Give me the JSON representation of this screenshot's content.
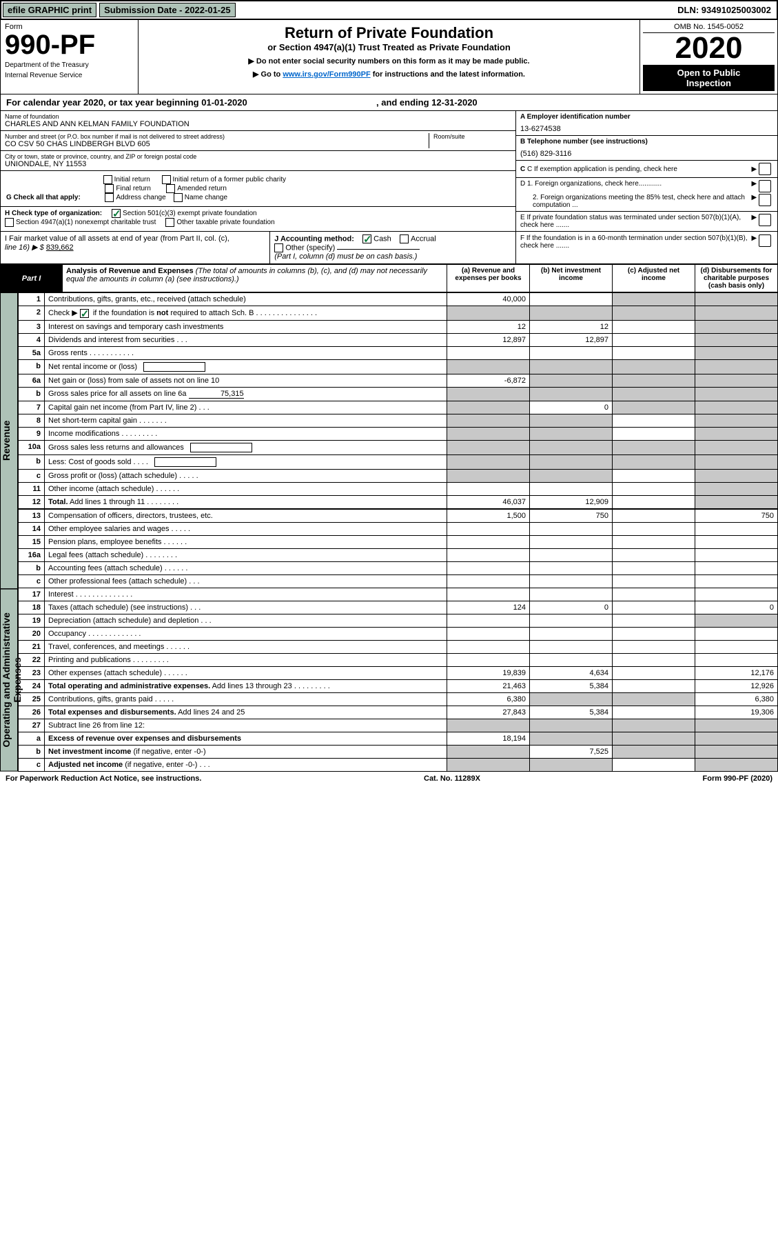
{
  "topbar": {
    "efile": "efile GRAPHIC print",
    "subdate_label": "Submission Date - 2022-01-25",
    "dln": "DLN: 93491025003002"
  },
  "header": {
    "form_word": "Form",
    "form_num": "990-PF",
    "dept": "Department of the Treasury",
    "irs": "Internal Revenue Service",
    "title": "Return of Private Foundation",
    "subtitle": "or Section 4947(a)(1) Trust Treated as Private Foundation",
    "note_line1": "▶ Do not enter social security numbers on this form as it may be made public.",
    "note_line2_pre": "▶ Go to ",
    "note_link": "www.irs.gov/Form990PF",
    "note_line2_post": " for instructions and the latest information.",
    "omb": "OMB No. 1545-0052",
    "year": "2020",
    "open1": "Open to Public",
    "open2": "Inspection"
  },
  "calyear": {
    "text_pre": "For calendar year 2020, or tax year beginning ",
    "begin": "01-01-2020",
    "mid": " , and ending ",
    "end": "12-31-2020"
  },
  "identity": {
    "name_label": "Name of foundation",
    "name": "CHARLES AND ANN KELMAN FAMILY FOUNDATION",
    "addr_label": "Number and street (or P.O. box number if mail is not delivered to street address)",
    "addr": "CO CSV 50 CHAS LINDBERGH BLVD 605",
    "room_label": "Room/suite",
    "city_label": "City or town, state or province, country, and ZIP or foreign postal code",
    "city": "UNIONDALE, NY  11553",
    "ein_label": "A Employer identification number",
    "ein": "13-6274538",
    "phone_label": "B Telephone number (see instructions)",
    "phone": "(516) 829-3116",
    "c_label": "C If exemption application is pending, check here",
    "d1": "D 1. Foreign organizations, check here............",
    "d2": "2. Foreign organizations meeting the 85% test, check here and attach computation ...",
    "e": "E  If private foundation status was terminated under section 507(b)(1)(A), check here .......",
    "f": "F  If the foundation is in a 60-month termination under section 507(b)(1)(B), check here .......",
    "g_label": "G Check all that apply:",
    "g_opts": [
      "Initial return",
      "Initial return of a former public charity",
      "Final return",
      "Amended return",
      "Address change",
      "Name change"
    ],
    "h_label": "H Check type of organization:",
    "h_opt1": "Section 501(c)(3) exempt private foundation",
    "h_opt2": "Section 4947(a)(1) nonexempt charitable trust",
    "h_opt3": "Other taxable private foundation",
    "i_label": "I Fair market value of all assets at end of year (from Part II, col. (c),",
    "i_line": "line 16) ▶ $",
    "i_val": "839,662",
    "j_label": "J Accounting method:",
    "j_cash": "Cash",
    "j_accrual": "Accrual",
    "j_other": "Other (specify)",
    "j_note": "(Part I, column (d) must be on cash basis.)"
  },
  "part1": {
    "tab": "Part I",
    "title": "Analysis of Revenue and Expenses",
    "note": " (The total of amounts in columns (b), (c), and (d) may not necessarily equal the amounts in column (a) (see instructions).)",
    "col_a": "(a)   Revenue and expenses per books",
    "col_b": "(b)   Net investment income",
    "col_c": "(c)   Adjusted net income",
    "col_d": "(d)   Disbursements for charitable purposes (cash basis only)"
  },
  "side_labels": {
    "revenue": "Revenue",
    "expenses": "Operating and Administrative Expenses"
  },
  "rows": [
    {
      "n": "1",
      "desc": "Contributions, gifts, grants, etc., received (attach schedule)",
      "a": "40,000",
      "b": "",
      "c": "grey",
      "d": "grey"
    },
    {
      "n": "2",
      "desc": "Check ▶ ☑ if the foundation is <b>not</b> required to attach Sch. B   .   .   .   .   .   .   .   .   .   .   .   .   .   .   .",
      "a": "grey",
      "b": "grey",
      "c": "grey",
      "d": "grey",
      "checked": true
    },
    {
      "n": "3",
      "desc": "Interest on savings and temporary cash investments",
      "a": "12",
      "b": "12",
      "c": "",
      "d": "grey"
    },
    {
      "n": "4",
      "desc": "Dividends and interest from securities   .   .   .",
      "a": "12,897",
      "b": "12,897",
      "c": "",
      "d": "grey"
    },
    {
      "n": "5a",
      "desc": "Gross rents   .   .   .   .   .   .   .   .   .   .   .",
      "a": "",
      "b": "",
      "c": "",
      "d": "grey"
    },
    {
      "n": "b",
      "desc": "Net rental income or (loss)  ",
      "a": "grey",
      "b": "grey",
      "c": "grey",
      "d": "grey",
      "inline_blank": true
    },
    {
      "n": "6a",
      "desc": "Net gain or (loss) from sale of assets not on line 10",
      "a": "-6,872",
      "b": "grey",
      "c": "grey",
      "d": "grey"
    },
    {
      "n": "b",
      "desc": "Gross sales price for all assets on line 6a",
      "a": "grey",
      "b": "grey",
      "c": "grey",
      "d": "grey",
      "inline_val": "75,315"
    },
    {
      "n": "7",
      "desc": "Capital gain net income (from Part IV, line 2)   .   .   .",
      "a": "grey",
      "b": "0",
      "c": "grey",
      "d": "grey"
    },
    {
      "n": "8",
      "desc": "Net short-term capital gain   .   .   .   .   .   .   .",
      "a": "grey",
      "b": "grey",
      "c": "",
      "d": "grey"
    },
    {
      "n": "9",
      "desc": "Income modifications   .   .   .   .   .   .   .   .   .",
      "a": "grey",
      "b": "grey",
      "c": "",
      "d": "grey"
    },
    {
      "n": "10a",
      "desc": "Gross sales less returns and allowances",
      "a": "grey",
      "b": "grey",
      "c": "grey",
      "d": "grey",
      "inline_blank": true
    },
    {
      "n": "b",
      "desc": "Less: Cost of goods sold   .   .   .   .",
      "a": "grey",
      "b": "grey",
      "c": "grey",
      "d": "grey",
      "inline_blank": true
    },
    {
      "n": "c",
      "desc": "Gross profit or (loss) (attach schedule)   .   .   .   .   .",
      "a": "grey",
      "b": "grey",
      "c": "",
      "d": "grey"
    },
    {
      "n": "11",
      "desc": "Other income (attach schedule)   .   .   .   .   .   .",
      "a": "",
      "b": "",
      "c": "",
      "d": "grey"
    },
    {
      "n": "12",
      "desc": "<b>Total.</b> Add lines 1 through 11   .   .   .   .   .   .   .   .",
      "a": "46,037",
      "b": "12,909",
      "c": "",
      "d": "grey",
      "bold": true
    }
  ],
  "exp_rows": [
    {
      "n": "13",
      "desc": "Compensation of officers, directors, trustees, etc.",
      "a": "1,500",
      "b": "750",
      "c": "",
      "d": "750"
    },
    {
      "n": "14",
      "desc": "Other employee salaries and wages   .   .   .   .   .",
      "a": "",
      "b": "",
      "c": "",
      "d": ""
    },
    {
      "n": "15",
      "desc": "Pension plans, employee benefits   .   .   .   .   .   .",
      "a": "",
      "b": "",
      "c": "",
      "d": ""
    },
    {
      "n": "16a",
      "desc": "Legal fees (attach schedule)   .   .   .   .   .   .   .   .",
      "a": "",
      "b": "",
      "c": "",
      "d": ""
    },
    {
      "n": "b",
      "desc": "Accounting fees (attach schedule)   .   .   .   .   .   .",
      "a": "",
      "b": "",
      "c": "",
      "d": ""
    },
    {
      "n": "c",
      "desc": "Other professional fees (attach schedule)   .   .   .",
      "a": "",
      "b": "",
      "c": "",
      "d": ""
    },
    {
      "n": "17",
      "desc": "Interest   .   .   .   .   .   .   .   .   .   .   .   .   .   .",
      "a": "",
      "b": "",
      "c": "",
      "d": ""
    },
    {
      "n": "18",
      "desc": "Taxes (attach schedule) (see instructions)   .   .   .",
      "a": "124",
      "b": "0",
      "c": "",
      "d": "0"
    },
    {
      "n": "19",
      "desc": "Depreciation (attach schedule) and depletion   .   .   .",
      "a": "",
      "b": "",
      "c": "",
      "d": "grey"
    },
    {
      "n": "20",
      "desc": "Occupancy   .   .   .   .   .   .   .   .   .   .   .   .   .",
      "a": "",
      "b": "",
      "c": "",
      "d": ""
    },
    {
      "n": "21",
      "desc": "Travel, conferences, and meetings   .   .   .   .   .   .",
      "a": "",
      "b": "",
      "c": "",
      "d": ""
    },
    {
      "n": "22",
      "desc": "Printing and publications   .   .   .   .   .   .   .   .   .",
      "a": "",
      "b": "",
      "c": "",
      "d": ""
    },
    {
      "n": "23",
      "desc": "Other expenses (attach schedule)   .   .   .   .   .   .",
      "a": "19,839",
      "b": "4,634",
      "c": "",
      "d": "12,176"
    },
    {
      "n": "24",
      "desc": "<b>Total operating and administrative expenses.</b> Add lines 13 through 23   .   .   .   .   .   .   .   .   .",
      "a": "21,463",
      "b": "5,384",
      "c": "",
      "d": "12,926"
    },
    {
      "n": "25",
      "desc": "Contributions, gifts, grants paid   .   .   .   .   .",
      "a": "6,380",
      "b": "grey",
      "c": "grey",
      "d": "6,380"
    },
    {
      "n": "26",
      "desc": "<b>Total expenses and disbursements.</b> Add lines 24 and 25",
      "a": "27,843",
      "b": "5,384",
      "c": "",
      "d": "19,306"
    },
    {
      "n": "27",
      "desc": "Subtract line 26 from line 12:",
      "a": "grey",
      "b": "grey",
      "c": "grey",
      "d": "grey"
    },
    {
      "n": "a",
      "desc": "<b>Excess of revenue over expenses and disbursements</b>",
      "a": "18,194",
      "b": "grey",
      "c": "grey",
      "d": "grey"
    },
    {
      "n": "b",
      "desc": "<b>Net investment income</b> (if negative, enter -0-)",
      "a": "grey",
      "b": "7,525",
      "c": "grey",
      "d": "grey"
    },
    {
      "n": "c",
      "desc": "<b>Adjusted net income</b> (if negative, enter -0-)   .   .   .",
      "a": "grey",
      "b": "grey",
      "c": "",
      "d": "grey"
    }
  ],
  "footer": {
    "left": "For Paperwork Reduction Act Notice, see instructions.",
    "mid": "Cat. No. 11289X",
    "right": "Form 990-PF (2020)"
  },
  "colors": {
    "accent_green": "#aec2b7",
    "check_green": "#0a7a3a",
    "link_blue": "#0066cc",
    "grey_cell": "#c8c8c8"
  }
}
